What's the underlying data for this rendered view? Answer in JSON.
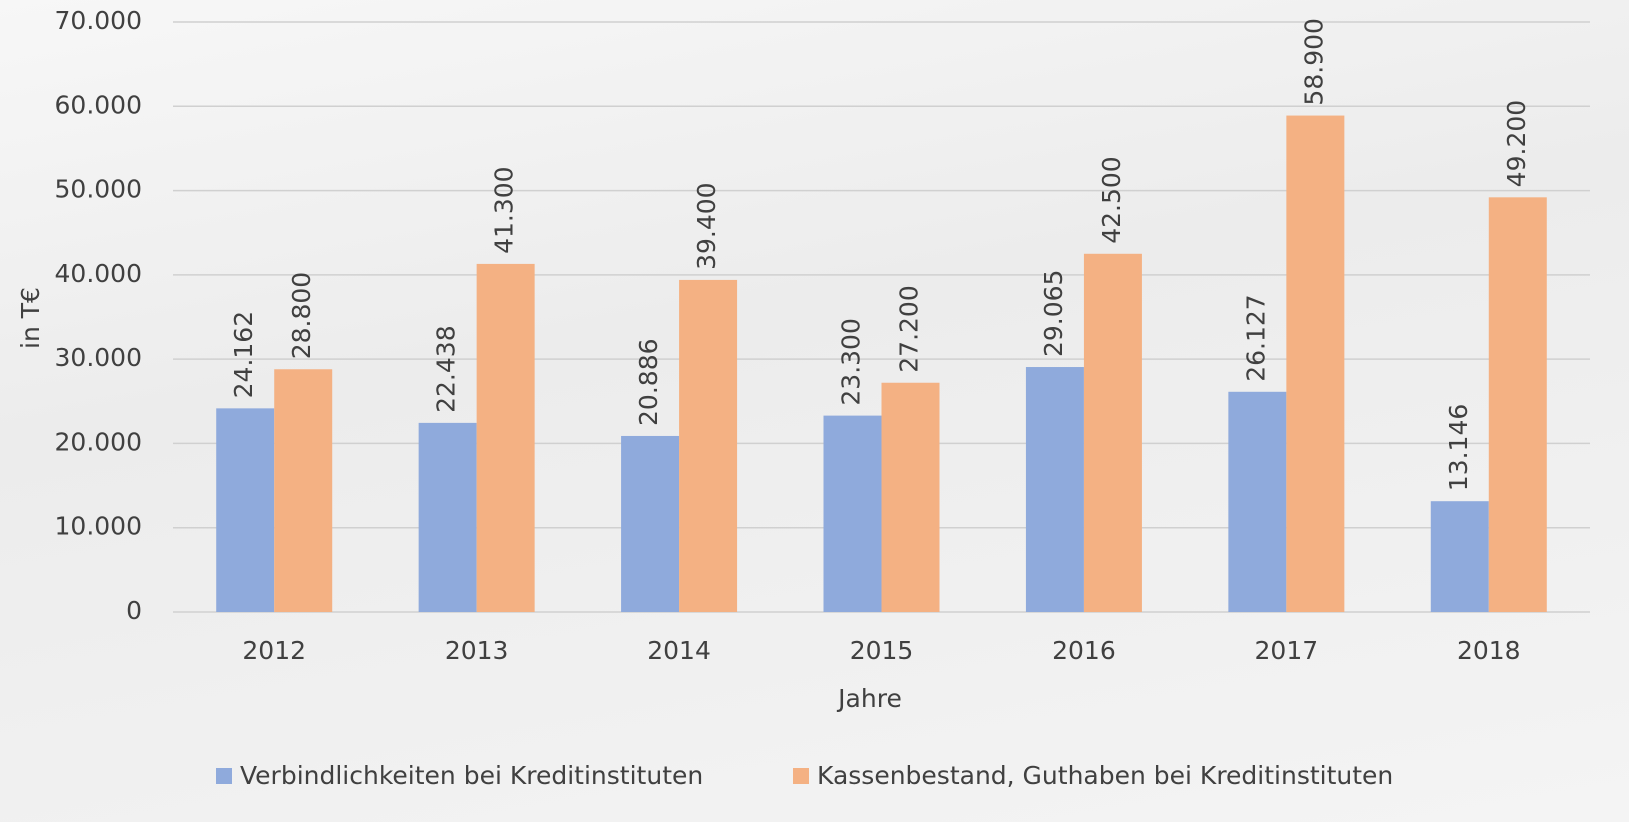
{
  "chart_data": {
    "type": "bar",
    "categories": [
      "2012",
      "2013",
      "2014",
      "2015",
      "2016",
      "2017",
      "2018"
    ],
    "series": [
      {
        "name": "Verbindlichkeiten bei Kreditinstituten",
        "color": "#8faadc",
        "values": [
          24162,
          22438,
          20886,
          23300,
          29065,
          26127,
          13146
        ],
        "value_labels": [
          "24.162",
          "22.438",
          "20.886",
          "23.300",
          "29.065",
          "26.127",
          "13.146"
        ]
      },
      {
        "name": "Kassenbestand, Guthaben bei Kreditinstituten",
        "color": "#f4b183",
        "values": [
          28800,
          41300,
          39400,
          27200,
          42500,
          58900,
          49200
        ],
        "value_labels": [
          "28.800",
          "41.300",
          "39.400",
          "27.200",
          "42.500",
          "58.900",
          "49.200"
        ]
      }
    ],
    "xlabel": "Jahre",
    "ylabel": "in T€",
    "ylim": [
      0,
      70000
    ],
    "yticks": [
      0,
      {
        "value": 10000,
        "label": "10.000"
      },
      {
        "value": 20000,
        "label": "20.000"
      },
      {
        "value": 30000,
        "label": "30.000"
      },
      {
        "value": 40000,
        "label": "40.000"
      },
      {
        "value": 50000,
        "label": "50.000"
      },
      {
        "value": 60000,
        "label": "60.000"
      },
      {
        "value": 70000,
        "label": "70.000"
      }
    ],
    "grid": true,
    "legend": "bottom"
  }
}
